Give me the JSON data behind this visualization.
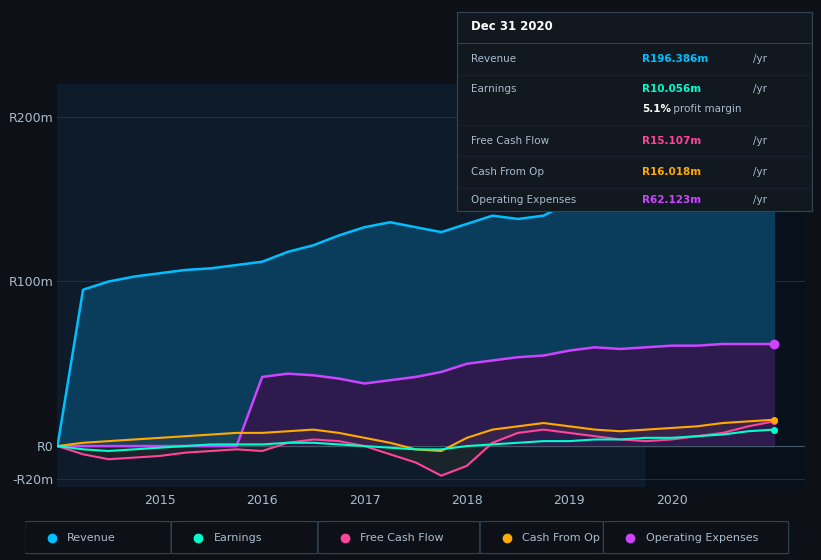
{
  "background_color": "#0d1117",
  "plot_bg_color": "#0d1b2a",
  "years": [
    2014.0,
    2014.25,
    2014.5,
    2014.75,
    2015.0,
    2015.25,
    2015.5,
    2015.75,
    2016.0,
    2016.25,
    2016.5,
    2016.75,
    2017.0,
    2017.25,
    2017.5,
    2017.75,
    2018.0,
    2018.25,
    2018.5,
    2018.75,
    2019.0,
    2019.25,
    2019.5,
    2019.75,
    2020.0,
    2020.25,
    2020.5,
    2020.75,
    2021.0
  ],
  "revenue": [
    0,
    95,
    100,
    103,
    105,
    107,
    108,
    110,
    112,
    118,
    122,
    128,
    133,
    136,
    133,
    130,
    135,
    140,
    138,
    140,
    148,
    155,
    160,
    165,
    172,
    180,
    190,
    196,
    196
  ],
  "operating_expenses": [
    0,
    0,
    0,
    0,
    0,
    0,
    0,
    0,
    42,
    44,
    43,
    41,
    38,
    40,
    42,
    45,
    50,
    52,
    54,
    55,
    58,
    60,
    59,
    60,
    61,
    61,
    62,
    62,
    62
  ],
  "free_cash_flow": [
    0,
    -5,
    -8,
    -7,
    -6,
    -4,
    -3,
    -2,
    -3,
    2,
    4,
    3,
    0,
    -5,
    -10,
    -18,
    -12,
    2,
    8,
    10,
    8,
    6,
    4,
    3,
    4,
    6,
    8,
    12,
    15
  ],
  "cash_from_op": [
    0,
    2,
    3,
    4,
    5,
    6,
    7,
    8,
    8,
    9,
    10,
    8,
    5,
    2,
    -2,
    -3,
    5,
    10,
    12,
    14,
    12,
    10,
    9,
    10,
    11,
    12,
    14,
    15,
    16
  ],
  "earnings": [
    0,
    -2,
    -3,
    -2,
    -1,
    0,
    1,
    1,
    1,
    2,
    2,
    1,
    0,
    -1,
    -2,
    -2,
    0,
    1,
    2,
    3,
    3,
    4,
    4,
    5,
    5,
    6,
    7,
    9,
    10
  ],
  "revenue_color": "#00bfff",
  "revenue_fill_color": "#0a3d5c",
  "operating_expenses_color": "#cc44ff",
  "operating_expenses_fill_color": "#2d1b4e",
  "free_cash_flow_color": "#ff4499",
  "cash_from_op_color": "#ffaa00",
  "earnings_color": "#00ffcc",
  "ylim": [
    -25,
    220
  ],
  "yticks": [
    -20,
    0,
    100,
    200
  ],
  "ytick_labels": [
    "-R20m",
    "R0",
    "R100m",
    "R200m"
  ],
  "xticks": [
    2015,
    2016,
    2017,
    2018,
    2019,
    2020
  ],
  "grid_color": "#1e3a4a",
  "text_color": "#aabbcc",
  "info_box": {
    "date": "Dec 31 2020",
    "revenue_val": "R196.386m",
    "earnings_val": "R10.056m",
    "profit_margin": "5.1%",
    "fcf_val": "R15.107m",
    "cash_from_op_val": "R16.018m",
    "op_exp_val": "R62.123m",
    "revenue_color": "#00bfff",
    "earnings_color": "#00ffcc",
    "fcf_color": "#ff4499",
    "cash_color": "#ffaa00",
    "op_exp_color": "#cc44ff",
    "bg_color": "#111820",
    "border_color": "#334455"
  },
  "legend_items": [
    {
      "label": "Revenue",
      "color": "#00bfff"
    },
    {
      "label": "Earnings",
      "color": "#00ffcc"
    },
    {
      "label": "Free Cash Flow",
      "color": "#ff4499"
    },
    {
      "label": "Cash From Op",
      "color": "#ffaa00"
    },
    {
      "label": "Operating Expenses",
      "color": "#cc44ff"
    }
  ],
  "highlight_x_start": 2019.75
}
